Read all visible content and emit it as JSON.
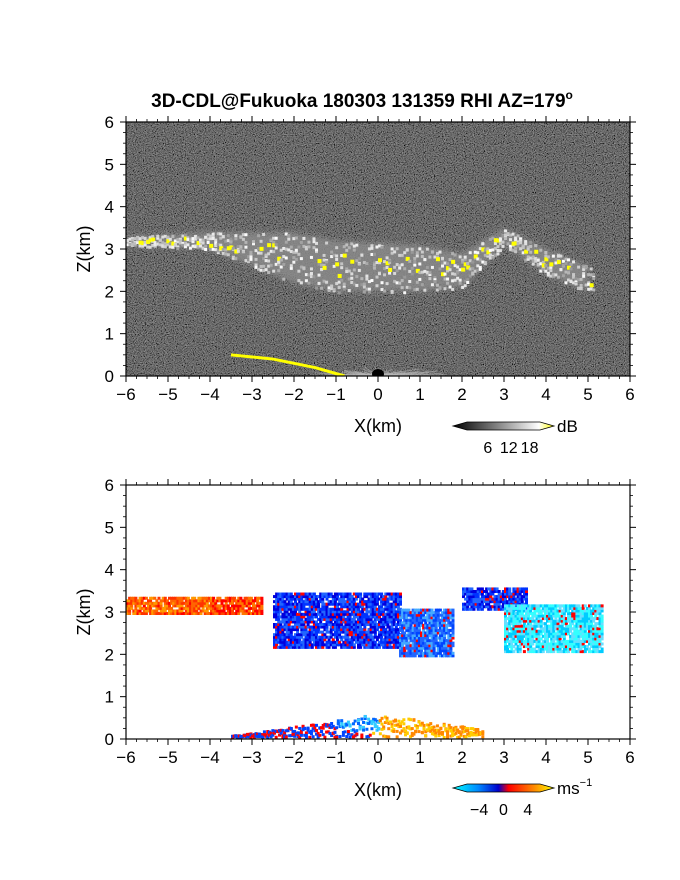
{
  "title": "3D-CDL@Fukuoka 180303 131359 RHI AZ=179",
  "title_superscript": "o",
  "chart_data": [
    {
      "type": "heatmap",
      "panel": "top",
      "quantity": "backscatter intensity",
      "xlabel": "X(km)",
      "ylabel": "Z(km)",
      "xlim": [
        -6,
        6
      ],
      "ylim": [
        0,
        6
      ],
      "xticks": [
        -6,
        -5,
        -4,
        -3,
        -2,
        -1,
        0,
        1,
        2,
        3,
        4,
        5,
        6
      ],
      "yticks": [
        0,
        1,
        2,
        3,
        4,
        5,
        6
      ],
      "colorbar": {
        "unit": "dB",
        "ticks": [
          6,
          12,
          18
        ],
        "colors": [
          "#000000",
          "#ffffff",
          "#ffff00"
        ]
      },
      "background": "noise",
      "layer": {
        "top_km": [
          [
            -6.0,
            3.3
          ],
          [
            -4.0,
            3.4
          ],
          [
            -2.0,
            3.4
          ],
          [
            -1.0,
            3.2
          ],
          [
            1.0,
            3.1
          ],
          [
            2.0,
            2.9
          ],
          [
            3.0,
            3.5
          ],
          [
            4.0,
            3.0
          ],
          [
            5.0,
            2.6
          ]
        ],
        "bottom_km": [
          [
            -6.0,
            3.1
          ],
          [
            -4.0,
            3.0
          ],
          [
            -2.0,
            2.2
          ],
          [
            -1.0,
            2.0
          ],
          [
            1.0,
            2.0
          ],
          [
            2.0,
            2.1
          ],
          [
            3.0,
            3.1
          ],
          [
            4.0,
            2.4
          ],
          [
            5.0,
            2.0
          ]
        ]
      },
      "ground_echo": [
        [
          -3.5,
          0.5
        ],
        [
          -2.5,
          0.4
        ],
        [
          -1.5,
          0.2
        ],
        [
          -0.8,
          0.0
        ]
      ]
    },
    {
      "type": "heatmap",
      "panel": "bottom",
      "quantity": "radial velocity",
      "xlabel": "X(km)",
      "ylabel": "Z(km)",
      "xlim": [
        -6,
        6
      ],
      "ylim": [
        0,
        6
      ],
      "xticks": [
        -6,
        -5,
        -4,
        -3,
        -2,
        -1,
        0,
        1,
        2,
        3,
        4,
        5,
        6
      ],
      "yticks": [
        0,
        1,
        2,
        3,
        4,
        5,
        6
      ],
      "colorbar": {
        "unit": "ms",
        "unit_exponent": "−1",
        "ticks": [
          -4,
          0,
          4
        ],
        "colors": [
          "#00ffff",
          "#0066ff",
          "#0000cc",
          "#ff0000",
          "#ff8800",
          "#ffff00"
        ]
      },
      "regions": [
        {
          "x_range": [
            -6.0,
            -4.0
          ],
          "top_km": 3.4,
          "bottom_km": 3.0,
          "velocity": 3
        },
        {
          "x_range": [
            -4.0,
            -2.8
          ],
          "top_km": 3.4,
          "bottom_km": 3.0,
          "velocity": 2
        },
        {
          "x_range": [
            -2.5,
            0.5
          ],
          "top_km": 3.5,
          "bottom_km": 2.2,
          "velocity": -2
        },
        {
          "x_range": [
            0.5,
            1.8
          ],
          "top_km": 3.1,
          "bottom_km": 2.0,
          "velocity": -1
        },
        {
          "x_range": [
            2.0,
            3.5
          ],
          "top_km": 3.6,
          "bottom_km": 3.1,
          "velocity": -2
        },
        {
          "x_range": [
            3.0,
            5.3
          ],
          "top_km": 3.2,
          "bottom_km": 2.1,
          "velocity": -4
        }
      ],
      "low_echo_x_range": [
        -3.5,
        2.5
      ]
    }
  ]
}
